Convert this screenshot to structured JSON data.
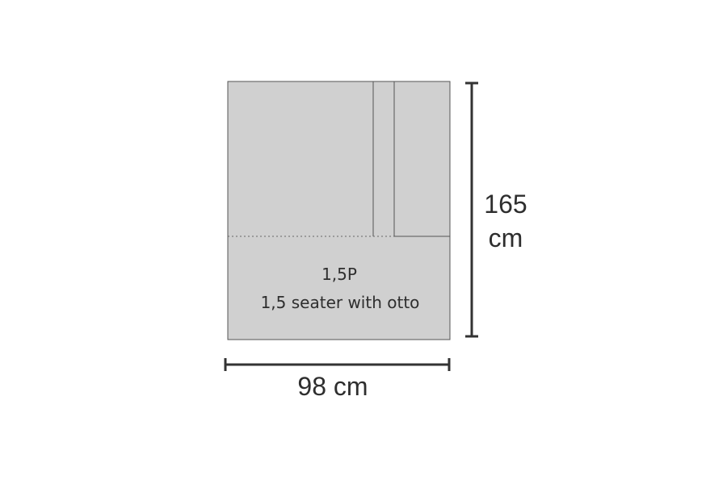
{
  "colors": {
    "sofa_fill": "#d0d0d0",
    "sofa_outline": "#555555",
    "dimension_line": "#333333",
    "text": "#2e2e2e"
  },
  "sofa": {
    "code": "1,5P",
    "description": "1,5 seater  with otto"
  },
  "dimensions": {
    "width_label": "98 cm",
    "height_value": "165",
    "height_unit": "cm"
  }
}
